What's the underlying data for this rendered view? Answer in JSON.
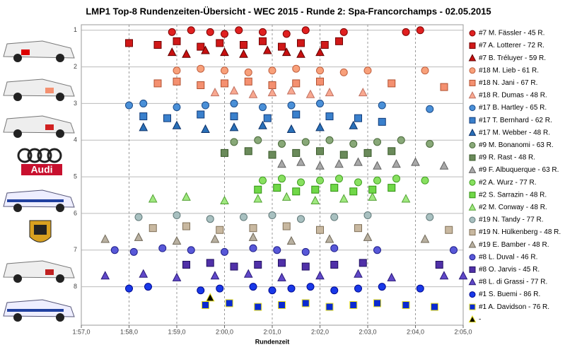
{
  "chart_data": {
    "type": "scatter",
    "title": "LMP1 Top-8 Rundenzeiten-Übersicht - WEC 2015 - Runde 2: Spa-Francorchamps - 02.05.2015",
    "x_label": "Rundenzeit",
    "logo_text": "Audi",
    "xlim": [
      117,
      125
    ],
    "xticks": [
      {
        "value": 117,
        "label": "1:57,0"
      },
      {
        "value": 118,
        "label": "1:58,0"
      },
      {
        "value": 119,
        "label": "1:59,0"
      },
      {
        "value": 120,
        "label": "2:00,0"
      },
      {
        "value": 121,
        "label": "2:01,0"
      },
      {
        "value": 122,
        "label": "2:02,0"
      },
      {
        "value": 123,
        "label": "2:03,0"
      },
      {
        "value": 124,
        "label": "2:04,0"
      },
      {
        "value": 125,
        "label": "2:05,0"
      }
    ],
    "ylim": [
      0.85,
      9.05
    ],
    "y_inverted": true,
    "yticks": [
      1,
      2,
      3,
      4,
      5,
      6,
      7,
      8
    ],
    "grid": true,
    "legend": "right",
    "series": [
      {
        "name": "#7 M. Fässler - 45 R.",
        "color": "#e02020",
        "stroke": "#800000",
        "marker": "circle",
        "x": [
          118.9,
          119.3,
          119.7,
          120.0,
          120.3,
          120.8,
          121.3,
          121.7,
          122.5,
          123.8,
          124.1
        ],
        "values": [
          1.05,
          1.0,
          1.05,
          1.1,
          1.0,
          1.05,
          1.1,
          1.0,
          1.05,
          1.05,
          1.0
        ]
      },
      {
        "name": "#7 A. Lotterer - 72 R.",
        "color": "#d01818",
        "stroke": "#700000",
        "marker": "square",
        "x": [
          118.0,
          118.6,
          119.0,
          119.5,
          119.9,
          120.4,
          120.8,
          121.2,
          121.6,
          122.1,
          122.4
        ],
        "values": [
          1.35,
          1.4,
          1.3,
          1.45,
          1.35,
          1.4,
          1.3,
          1.45,
          1.35,
          1.4,
          1.3
        ]
      },
      {
        "name": "#7 B. Tréluyer - 59 R.",
        "color": "#c81010",
        "stroke": "#600000",
        "marker": "triangle",
        "x": [
          118.9,
          119.2,
          119.6,
          120.0,
          120.4,
          120.9,
          121.3,
          121.6,
          122.0
        ],
        "values": [
          1.6,
          1.65,
          1.55,
          1.6,
          1.65,
          1.55,
          1.6,
          1.65,
          1.6
        ]
      },
      {
        "name": "#18 M. Lieb - 61 R.",
        "color": "#f8a07a",
        "stroke": "#c06040",
        "marker": "circle",
        "x": [
          119.0,
          119.5,
          120.0,
          120.5,
          121.0,
          121.5,
          122.0,
          122.5,
          123.0,
          124.2
        ],
        "values": [
          2.1,
          2.05,
          2.1,
          2.15,
          2.1,
          2.05,
          2.1,
          2.15,
          2.1,
          2.1
        ]
      },
      {
        "name": "#18 N. Jani - 67 R.",
        "color": "#f49070",
        "stroke": "#b05030",
        "marker": "square",
        "x": [
          118.6,
          119.0,
          119.5,
          120.0,
          120.5,
          121.0,
          121.5,
          122.0,
          123.5,
          124.6
        ],
        "values": [
          2.45,
          2.4,
          2.5,
          2.45,
          2.4,
          2.5,
          2.45,
          2.4,
          2.45,
          2.55
        ]
      },
      {
        "name": "#18 R. Dumas - 48 R.",
        "color": "#f8a890",
        "stroke": "#c07060",
        "marker": "triangle",
        "x": [
          119.8,
          120.2,
          120.6,
          121.0,
          121.4,
          121.8,
          122.2,
          122.9
        ],
        "values": [
          2.7,
          2.65,
          2.75,
          2.7,
          2.65,
          2.75,
          2.7,
          2.7
        ]
      },
      {
        "name": "#17 B. Hartley - 65 R.",
        "color": "#4a90d8",
        "stroke": "#1a4a88",
        "marker": "circle",
        "x": [
          118.0,
          118.3,
          119.0,
          119.6,
          120.2,
          120.8,
          121.4,
          122.0,
          123.3,
          124.3
        ],
        "values": [
          3.05,
          3.0,
          3.1,
          3.05,
          3.0,
          3.1,
          3.05,
          3.0,
          3.05,
          3.15
        ]
      },
      {
        "name": "#17 T. Bernhard - 62 R.",
        "color": "#3a80cc",
        "stroke": "#103a78",
        "marker": "square",
        "x": [
          118.3,
          118.8,
          119.5,
          120.2,
          120.9,
          121.5,
          122.2,
          122.8,
          123.3
        ],
        "values": [
          3.35,
          3.4,
          3.3,
          3.35,
          3.4,
          3.3,
          3.35,
          3.4,
          3.5
        ]
      },
      {
        "name": "#17 M. Webber - 48 R.",
        "color": "#2a70b8",
        "stroke": "#0a3068",
        "marker": "triangle",
        "x": [
          118.3,
          119.0,
          119.6,
          120.2,
          120.8,
          121.4,
          122.0,
          122.7
        ],
        "values": [
          3.65,
          3.6,
          3.7,
          3.65,
          3.6,
          3.7,
          3.65,
          3.6
        ]
      },
      {
        "name": "#9 M. Bonanomi - 63 R.",
        "color": "#88a878",
        "stroke": "#4a6a3a",
        "marker": "circle",
        "x": [
          120.2,
          120.7,
          121.2,
          121.7,
          122.2,
          122.7,
          123.2,
          123.7,
          124.3
        ],
        "values": [
          4.05,
          4.0,
          4.1,
          4.05,
          4.0,
          4.1,
          4.05,
          4.0,
          4.1
        ]
      },
      {
        "name": "#9 R. Rast - 48 R.",
        "color": "#6a8a5a",
        "stroke": "#3a5a2a",
        "marker": "square",
        "x": [
          120.0,
          120.5,
          121.0,
          121.5,
          122.0,
          122.5,
          123.0,
          123.5
        ],
        "values": [
          4.35,
          4.3,
          4.4,
          4.35,
          4.3,
          4.4,
          4.35,
          4.3
        ]
      },
      {
        "name": "#9 F. Albuquerque - 63 R.",
        "color": "#a8a8a8",
        "stroke": "#606060",
        "marker": "triangle",
        "x": [
          121.2,
          121.6,
          122.0,
          122.4,
          122.8,
          123.2,
          123.6,
          124.0,
          124.6
        ],
        "values": [
          4.65,
          4.6,
          4.7,
          4.65,
          4.6,
          4.7,
          4.65,
          4.6,
          4.7
        ]
      },
      {
        "name": "#2 A. Wurz - 77 R.",
        "color": "#88e060",
        "stroke": "#40a020",
        "marker": "circle",
        "x": [
          120.8,
          121.2,
          121.6,
          122.0,
          122.4,
          122.8,
          123.2,
          123.6,
          124.2
        ],
        "values": [
          5.1,
          5.05,
          5.15,
          5.1,
          5.05,
          5.15,
          5.1,
          5.05,
          5.1
        ]
      },
      {
        "name": "#2 S. Sarrazin - 48 R.",
        "color": "#70d848",
        "stroke": "#309010",
        "marker": "square",
        "x": [
          120.7,
          121.1,
          121.5,
          121.9,
          122.3,
          122.7,
          123.1,
          123.5
        ],
        "values": [
          5.35,
          5.3,
          5.4,
          5.35,
          5.3,
          5.4,
          5.35,
          5.3
        ]
      },
      {
        "name": "#2 M. Conway - 48 R.",
        "color": "#a0e880",
        "stroke": "#50a030",
        "marker": "triangle",
        "x": [
          118.5,
          119.2,
          120.0,
          120.7,
          121.3,
          121.9,
          122.5,
          123.1,
          123.8
        ],
        "values": [
          5.6,
          5.55,
          5.65,
          5.6,
          5.55,
          5.65,
          5.6,
          5.55,
          5.6
        ]
      },
      {
        "name": "#19 N. Tandy - 77 R.",
        "color": "#a8c0c0",
        "stroke": "#607878",
        "marker": "circle",
        "x": [
          118.2,
          119.0,
          119.7,
          120.4,
          121.0,
          121.6,
          122.3,
          123.0,
          124.3
        ],
        "values": [
          6.1,
          6.05,
          6.15,
          6.1,
          6.05,
          6.15,
          6.1,
          6.05,
          6.1
        ]
      },
      {
        "name": "#19 N. Hülkenberg - 48 R.",
        "color": "#c8b8a0",
        "stroke": "#807058",
        "marker": "square",
        "x": [
          118.5,
          119.2,
          119.9,
          120.6,
          121.3,
          122.0,
          122.8,
          124.7
        ],
        "values": [
          6.4,
          6.35,
          6.45,
          6.4,
          6.35,
          6.45,
          6.4,
          6.45
        ]
      },
      {
        "name": "#19 E. Bamber - 48 R.",
        "color": "#b8b0a0",
        "stroke": "#706858",
        "marker": "triangle",
        "x": [
          117.5,
          118.2,
          119.0,
          119.8,
          120.6,
          121.4,
          122.2,
          123.0,
          124.2
        ],
        "values": [
          6.7,
          6.65,
          6.75,
          6.7,
          6.65,
          6.75,
          6.7,
          6.65,
          6.7
        ]
      },
      {
        "name": "#8 L. Duval - 46 R.",
        "color": "#5858d8",
        "stroke": "#20208a",
        "marker": "circle",
        "x": [
          117.7,
          118.1,
          118.7,
          119.3,
          120.0,
          120.6,
          121.1,
          121.7,
          122.3,
          123.2,
          124.8
        ],
        "values": [
          7.0,
          7.05,
          6.95,
          7.0,
          7.05,
          6.95,
          7.0,
          7.05,
          6.95,
          7.0,
          7.0
        ]
      },
      {
        "name": "#8 O. Jarvis - 45 R.",
        "color": "#5030a8",
        "stroke": "#201060",
        "marker": "square",
        "x": [
          119.2,
          119.7,
          120.2,
          120.7,
          121.2,
          121.7,
          122.3,
          122.9,
          124.5
        ],
        "values": [
          7.4,
          7.35,
          7.45,
          7.4,
          7.35,
          7.45,
          7.4,
          7.35,
          7.4
        ]
      },
      {
        "name": "#8 L. di Grassi - 77 R.",
        "color": "#6048c8",
        "stroke": "#281878",
        "marker": "triangle",
        "x": [
          117.5,
          118.3,
          119.0,
          119.8,
          120.5,
          121.2,
          122.0,
          122.8,
          123.5,
          124.6,
          125.0
        ],
        "values": [
          7.7,
          7.65,
          7.75,
          7.7,
          7.65,
          7.75,
          7.7,
          7.65,
          7.75,
          7.7,
          7.7
        ]
      },
      {
        "name": "#1 S. Buemi - 86 R.",
        "color": "#1838e8",
        "stroke": "#000890",
        "marker": "circle",
        "x": [
          118.0,
          118.4,
          119.5,
          119.9,
          120.6,
          121.0,
          121.4,
          121.8,
          122.3,
          122.8,
          123.3,
          124.1
        ],
        "values": [
          8.05,
          8.0,
          8.1,
          8.05,
          8.0,
          8.1,
          8.05,
          8.0,
          8.1,
          8.05,
          8.0,
          8.05
        ]
      },
      {
        "name": "#1 A. Davidson - 76 R.",
        "color": "#0a2ad0",
        "stroke": "#e8e020",
        "marker": "square",
        "x": [
          119.6,
          120.1,
          120.7,
          121.2,
          121.7,
          122.2,
          122.7,
          123.2,
          123.8,
          124.4
        ],
        "values": [
          8.5,
          8.45,
          8.55,
          8.5,
          8.45,
          8.55,
          8.5,
          8.45,
          8.5,
          8.55
        ]
      },
      {
        "name": "-",
        "color": "#000000",
        "stroke": "#e8e020",
        "marker": "triangle",
        "x": [
          119.7
        ],
        "values": [
          8.3
        ]
      }
    ]
  }
}
